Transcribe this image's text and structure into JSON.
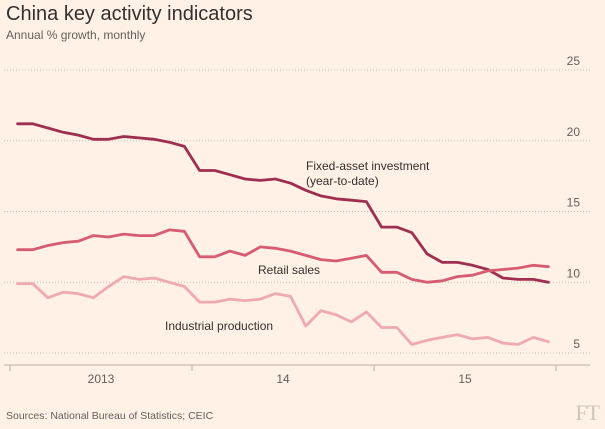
{
  "title": "China key activity indicators",
  "subtitle": "Annual % growth, monthly",
  "source": "Sources: National Bureau of Statistics; CEIC",
  "logo": "FT",
  "chart_data": {
    "type": "line",
    "title": "China key activity indicators",
    "subtitle": "Annual % growth, monthly",
    "ylim": [
      5,
      25
    ],
    "yticks": [
      5,
      10,
      15,
      20,
      25
    ],
    "xlim": [
      0,
      36
    ],
    "xticks": [
      {
        "label": "2013",
        "at": 6
      },
      {
        "label": "14",
        "at": 18
      },
      {
        "label": "15",
        "at": 30
      }
    ],
    "year_boundaries": [
      0,
      12,
      24,
      36
    ],
    "grid": true,
    "x": [
      0.5,
      1.5,
      2.5,
      3.5,
      4.5,
      5.5,
      6.5,
      7.5,
      8.5,
      9.5,
      10.5,
      11.5,
      12.5,
      13.5,
      14.5,
      15.5,
      16.5,
      17.5,
      18.5,
      19.5,
      20.5,
      21.5,
      22.5,
      23.5,
      24.5,
      25.5,
      26.5,
      27.5,
      28.5,
      29.5,
      30.5,
      31.5,
      32.5,
      33.5,
      34.5,
      35.5
    ],
    "series": [
      {
        "name": "Fixed-asset investment (year-to-date)",
        "label_lines": [
          "Fixed-asset investment",
          "(year-to-date)"
        ],
        "color": "#9e2f50",
        "values": [
          21.2,
          21.2,
          20.9,
          20.6,
          20.4,
          20.1,
          20.1,
          20.3,
          20.2,
          20.1,
          19.9,
          19.6,
          17.9,
          17.9,
          17.6,
          17.3,
          17.2,
          17.3,
          17.0,
          16.5,
          16.1,
          15.9,
          15.8,
          15.7,
          13.9,
          13.9,
          13.5,
          12.0,
          11.4,
          11.4,
          11.2,
          10.9,
          10.3,
          10.2,
          10.2,
          10.0
        ]
      },
      {
        "name": "Retail sales",
        "label_lines": [
          "Retail sales"
        ],
        "color": "#d75c71",
        "values": [
          12.3,
          12.3,
          12.6,
          12.8,
          12.9,
          13.3,
          13.2,
          13.4,
          13.3,
          13.3,
          13.7,
          13.6,
          11.8,
          11.8,
          12.2,
          11.9,
          12.5,
          12.4,
          12.2,
          11.9,
          11.6,
          11.5,
          11.7,
          11.9,
          10.7,
          10.7,
          10.2,
          10.0,
          10.1,
          10.4,
          10.5,
          10.8,
          10.9,
          11.0,
          11.2,
          11.1
        ]
      },
      {
        "name": "Industrial production",
        "label_lines": [
          "Industrial production"
        ],
        "color": "#eea9b2",
        "values": [
          9.9,
          9.9,
          8.9,
          9.3,
          9.2,
          8.9,
          9.7,
          10.4,
          10.2,
          10.3,
          10.0,
          9.7,
          8.6,
          8.6,
          8.8,
          8.7,
          8.8,
          9.2,
          9.0,
          6.9,
          8.0,
          7.7,
          7.2,
          7.9,
          6.8,
          6.8,
          5.6,
          5.9,
          6.1,
          6.3,
          6.0,
          6.1,
          5.7,
          5.6,
          6.1,
          5.8
        ]
      }
    ]
  }
}
